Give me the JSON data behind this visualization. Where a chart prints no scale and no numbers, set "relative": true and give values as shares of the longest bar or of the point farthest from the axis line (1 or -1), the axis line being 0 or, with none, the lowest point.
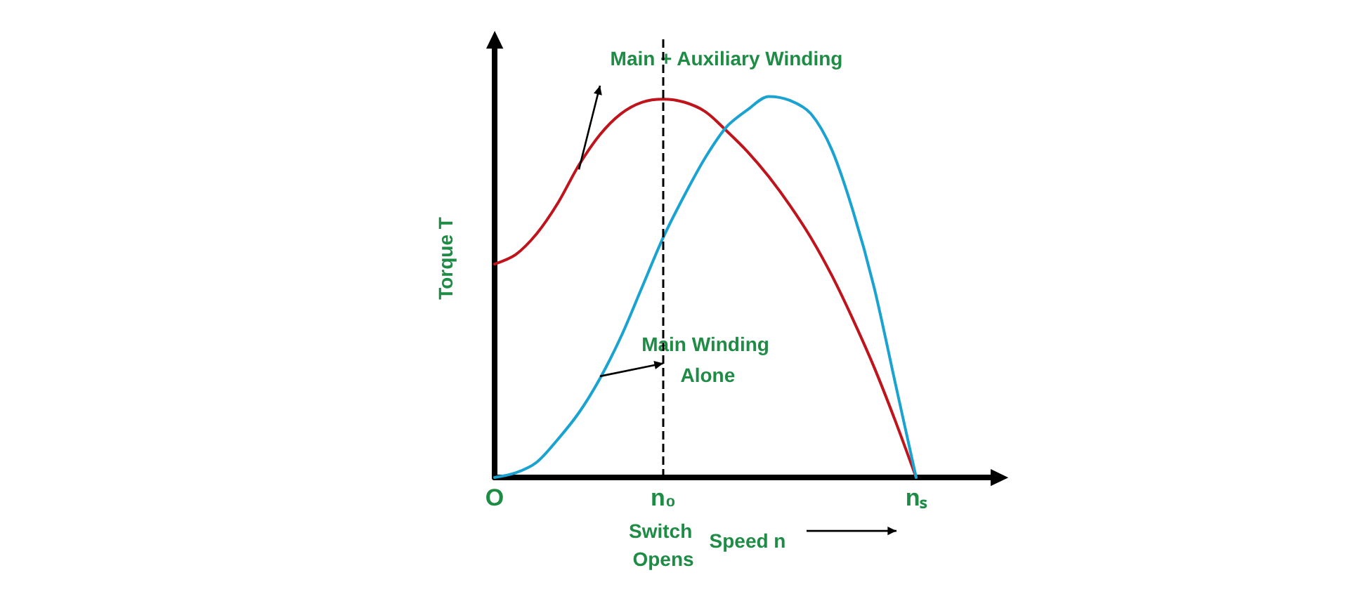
{
  "chart_data": {
    "type": "line",
    "relative": true,
    "xlabel": "Speed n",
    "ylabel": "Torque T",
    "categories": [
      "O",
      null,
      null,
      null,
      null,
      null,
      null,
      null,
      "n₀",
      null,
      null,
      null,
      null,
      null,
      null,
      null,
      null,
      null,
      null,
      null,
      "nₛ",
      null,
      null,
      null,
      null
    ],
    "series": [
      {
        "name": "Main + Auxiliary Winding",
        "color": "#c0141c",
        "values": [
          0.56,
          0.585,
          0.64,
          0.72,
          0.82,
          0.9,
          0.955,
          0.985,
          0.993,
          0.985,
          0.96,
          0.91,
          0.855,
          0.79,
          0.715,
          0.63,
          0.53,
          0.415,
          0.29,
          0.15,
          0,
          null,
          null,
          null,
          null
        ]
      },
      {
        "name": "Main Winding Alone",
        "color": "#1aa3d1",
        "values": [
          0,
          0.012,
          0.04,
          0.1,
          0.17,
          0.26,
          0.37,
          0.5,
          0.63,
          0.74,
          0.84,
          0.92,
          0.965,
          1,
          0.99,
          0.955,
          0.86,
          0.7,
          0.5,
          0.25,
          0,
          null,
          null,
          null,
          null
        ]
      }
    ],
    "ref_lines": [
      {
        "axis": "x",
        "value": "n₀",
        "label": "Switch Opens",
        "color": "#000000",
        "line_style": "dashed"
      }
    ],
    "legend": false,
    "grid": false,
    "marker": "none",
    "line_style": "solid"
  }
}
